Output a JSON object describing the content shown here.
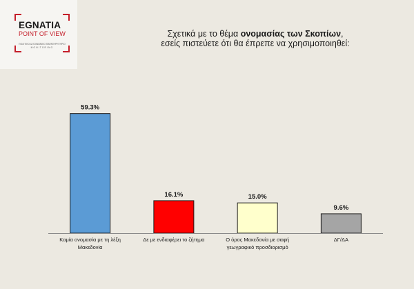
{
  "logo": {
    "name": "EGNATIA",
    "subtitle": "POINT OF VIEW",
    "tagline": "ΠΟΛΙΤΙΚΟ & ΚΟΙΝΩΝΙΚΟ ΠΑΡΑΤΗΡΗΤΗΡΙΟ",
    "tagline2": "MONITORING",
    "accent_color": "#c41e2a"
  },
  "title": {
    "line1_before": "Σχετικά με το θέμα ",
    "line1_bold": "ονομασίας των Σκοπίων",
    "line1_after": ",",
    "line2": "εσείς πιστεύετε ότι θα έπρεπε να χρησιμοποιηθεί:"
  },
  "chart_data": {
    "type": "bar",
    "categories": [
      [
        "Καμία ονομασία με τη λέξη",
        "Μακεδονία"
      ],
      [
        "Δε με ενδιαφέρει το ζήτημα"
      ],
      [
        "Ο όρος Μακεδονία με σαφή",
        "γεωγραφικό προσδιορισμό"
      ],
      [
        "ΔΓ/ΔΑ"
      ]
    ],
    "values": [
      59.3,
      16.1,
      15.0,
      9.6
    ],
    "value_labels": [
      "59.3%",
      "16.1%",
      "15.0%",
      "9.6%"
    ],
    "colors": [
      "#5b9bd5",
      "#ff0000",
      "#ffffcc",
      "#a5a5a5"
    ],
    "ylim": [
      0,
      65
    ],
    "grid": false,
    "legend": "none"
  }
}
